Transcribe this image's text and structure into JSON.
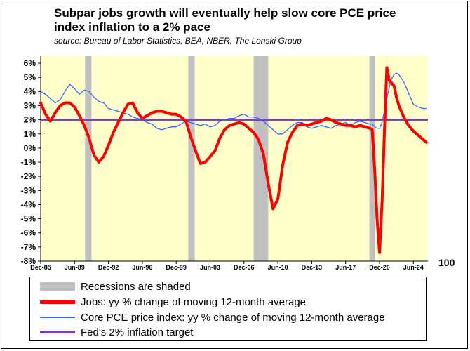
{
  "title": "Subpar jobs growth will eventually help slow core PCE price index inflation to a 2% pace",
  "subtitle": "source: Bureau of Labor Statistics, BEA, NBER, The Lonski Group",
  "extra_label": "100",
  "colors": {
    "plot_bg": "#FFFFCC",
    "recession": "#C0C0C0",
    "jobs": "#FF0000",
    "pce": "#3366FF",
    "target": "#7F3FBF"
  },
  "legend": [
    {
      "label": "Recessions are shaded",
      "kind": "recession"
    },
    {
      "label": "Jobs: yy % change of moving 12-month average",
      "kind": "jobs"
    },
    {
      "label": "Core PCE price index: yy % change of moving 12-month average",
      "kind": "pce"
    },
    {
      "label": "Fed's 2% inflation target",
      "kind": "target"
    }
  ],
  "chart_data": {
    "type": "line",
    "title": "Subpar jobs growth will eventually help slow core PCE price index inflation to a 2% pace",
    "subtitle": "source: Bureau of Labor Statistics, BEA, NBER, The Lonski Group",
    "x_range": [
      "1985-12",
      "2025-12"
    ],
    "x_tick_labels": [
      "Dec-85",
      "Jun-89",
      "Dec-92",
      "Jun-96",
      "Dec-99",
      "Jun-03",
      "Dec-06",
      "Jun-10",
      "Dec-13",
      "Jun-17",
      "Dec-20",
      "Jun-24"
    ],
    "x_tick_dates": [
      "1985-12",
      "1989-06",
      "1992-12",
      "1996-06",
      "1999-12",
      "2003-06",
      "2006-12",
      "2010-06",
      "2013-12",
      "2017-06",
      "2020-12",
      "2024-06"
    ],
    "y_range": [
      -8,
      6.5
    ],
    "y_tick_values": [
      6,
      5,
      4,
      3,
      2,
      1,
      0,
      -1,
      -2,
      -3,
      -4,
      -5,
      -6,
      -7,
      -8
    ],
    "y_tick_labels": [
      "6%",
      "5%",
      "4%",
      "3%",
      "2%",
      "1%",
      "0%",
      "-1%",
      "-2%",
      "-3%",
      "-4%",
      "-5%",
      "-6%",
      "-7%",
      "-8%"
    ],
    "grid": false,
    "recessions": [
      [
        "1990-07",
        "1991-03"
      ],
      [
        "2001-03",
        "2001-11"
      ],
      [
        "2007-12",
        "2009-06"
      ],
      [
        "2020-02",
        "2020-04"
      ]
    ],
    "reference_line": {
      "name": "Fed's 2% inflation target",
      "value": 2
    },
    "series": [
      {
        "name": "Jobs: yy % change of moving 12-month average",
        "points": [
          [
            "1985-12",
            3.2
          ],
          [
            "1986-06",
            2.4
          ],
          [
            "1986-12",
            1.9
          ],
          [
            "1987-06",
            2.5
          ],
          [
            "1987-12",
            3.0
          ],
          [
            "1988-06",
            3.2
          ],
          [
            "1988-12",
            3.2
          ],
          [
            "1989-06",
            2.9
          ],
          [
            "1989-12",
            2.3
          ],
          [
            "1990-06",
            1.6
          ],
          [
            "1990-12",
            0.7
          ],
          [
            "1991-06",
            -0.5
          ],
          [
            "1991-12",
            -1.0
          ],
          [
            "1992-06",
            -0.6
          ],
          [
            "1992-12",
            0.2
          ],
          [
            "1993-06",
            1.1
          ],
          [
            "1993-12",
            1.8
          ],
          [
            "1994-06",
            2.5
          ],
          [
            "1994-12",
            3.1
          ],
          [
            "1995-06",
            3.2
          ],
          [
            "1995-12",
            2.5
          ],
          [
            "1996-06",
            2.1
          ],
          [
            "1996-12",
            2.3
          ],
          [
            "1997-06",
            2.5
          ],
          [
            "1997-12",
            2.6
          ],
          [
            "1998-06",
            2.6
          ],
          [
            "1998-12",
            2.5
          ],
          [
            "1999-06",
            2.4
          ],
          [
            "1999-12",
            2.4
          ],
          [
            "2000-06",
            2.2
          ],
          [
            "2000-12",
            1.9
          ],
          [
            "2001-06",
            0.8
          ],
          [
            "2001-12",
            -0.2
          ],
          [
            "2002-06",
            -1.1
          ],
          [
            "2002-12",
            -1.0
          ],
          [
            "2003-06",
            -0.6
          ],
          [
            "2003-12",
            -0.2
          ],
          [
            "2004-06",
            0.7
          ],
          [
            "2004-12",
            1.3
          ],
          [
            "2005-06",
            1.6
          ],
          [
            "2005-12",
            1.7
          ],
          [
            "2006-06",
            1.8
          ],
          [
            "2006-12",
            1.7
          ],
          [
            "2007-06",
            1.4
          ],
          [
            "2007-12",
            1.1
          ],
          [
            "2008-06",
            0.6
          ],
          [
            "2008-12",
            -0.4
          ],
          [
            "2009-06",
            -2.5
          ],
          [
            "2009-12",
            -4.3
          ],
          [
            "2010-06",
            -3.6
          ],
          [
            "2010-12",
            -1.2
          ],
          [
            "2011-06",
            0.4
          ],
          [
            "2011-12",
            1.1
          ],
          [
            "2012-06",
            1.6
          ],
          [
            "2012-12",
            1.7
          ],
          [
            "2013-06",
            1.6
          ],
          [
            "2013-12",
            1.7
          ],
          [
            "2014-06",
            1.8
          ],
          [
            "2014-12",
            1.9
          ],
          [
            "2015-06",
            2.1
          ],
          [
            "2015-12",
            2.0
          ],
          [
            "2016-06",
            1.8
          ],
          [
            "2016-12",
            1.7
          ],
          [
            "2017-06",
            1.6
          ],
          [
            "2017-12",
            1.6
          ],
          [
            "2018-06",
            1.5
          ],
          [
            "2018-12",
            1.6
          ],
          [
            "2019-06",
            1.5
          ],
          [
            "2019-12",
            1.4
          ],
          [
            "2020-03",
            1.3
          ],
          [
            "2020-06",
            -1.5
          ],
          [
            "2020-09",
            -5.0
          ],
          [
            "2020-12",
            -7.4
          ],
          [
            "2021-03",
            -4.0
          ],
          [
            "2021-06",
            1.0
          ],
          [
            "2021-09",
            5.7
          ],
          [
            "2021-12",
            4.8
          ],
          [
            "2022-03",
            4.6
          ],
          [
            "2022-06",
            4.4
          ],
          [
            "2022-09",
            3.6
          ],
          [
            "2022-12",
            3.0
          ],
          [
            "2023-06",
            2.2
          ],
          [
            "2023-12",
            1.6
          ],
          [
            "2024-06",
            1.2
          ],
          [
            "2024-12",
            0.9
          ],
          [
            "2025-06",
            0.6
          ],
          [
            "2025-10",
            0.4
          ]
        ]
      },
      {
        "name": "Core PCE price index: yy % change of moving 12-month average",
        "points": [
          [
            "1985-12",
            4.0
          ],
          [
            "1986-06",
            3.8
          ],
          [
            "1986-12",
            3.5
          ],
          [
            "1987-06",
            3.2
          ],
          [
            "1987-12",
            3.4
          ],
          [
            "1988-06",
            4.0
          ],
          [
            "1988-12",
            4.5
          ],
          [
            "1989-06",
            4.2
          ],
          [
            "1989-12",
            3.8
          ],
          [
            "1990-06",
            4.1
          ],
          [
            "1990-12",
            4.0
          ],
          [
            "1991-06",
            3.6
          ],
          [
            "1991-12",
            3.3
          ],
          [
            "1992-06",
            3.2
          ],
          [
            "1992-12",
            2.8
          ],
          [
            "1993-06",
            2.7
          ],
          [
            "1993-12",
            2.6
          ],
          [
            "1994-06",
            2.5
          ],
          [
            "1994-12",
            2.4
          ],
          [
            "1995-06",
            2.2
          ],
          [
            "1995-12",
            2.1
          ],
          [
            "1996-06",
            2.0
          ],
          [
            "1996-12",
            1.8
          ],
          [
            "1997-06",
            1.7
          ],
          [
            "1997-12",
            1.4
          ],
          [
            "1998-06",
            1.3
          ],
          [
            "1998-12",
            1.4
          ],
          [
            "1999-06",
            1.5
          ],
          [
            "1999-12",
            1.5
          ],
          [
            "2000-06",
            1.7
          ],
          [
            "2000-12",
            1.9
          ],
          [
            "2001-06",
            1.8
          ],
          [
            "2001-12",
            1.7
          ],
          [
            "2002-06",
            1.6
          ],
          [
            "2002-12",
            1.7
          ],
          [
            "2003-06",
            1.5
          ],
          [
            "2003-12",
            1.6
          ],
          [
            "2004-06",
            1.9
          ],
          [
            "2004-12",
            2.0
          ],
          [
            "2005-06",
            2.1
          ],
          [
            "2005-12",
            2.1
          ],
          [
            "2006-06",
            2.3
          ],
          [
            "2006-12",
            2.4
          ],
          [
            "2007-06",
            2.2
          ],
          [
            "2007-12",
            2.2
          ],
          [
            "2008-06",
            2.1
          ],
          [
            "2008-12",
            1.9
          ],
          [
            "2009-06",
            1.6
          ],
          [
            "2009-12",
            1.3
          ],
          [
            "2010-06",
            1.0
          ],
          [
            "2010-12",
            1.0
          ],
          [
            "2011-06",
            1.3
          ],
          [
            "2011-12",
            1.6
          ],
          [
            "2012-06",
            1.8
          ],
          [
            "2012-12",
            1.8
          ],
          [
            "2013-06",
            1.5
          ],
          [
            "2013-12",
            1.4
          ],
          [
            "2014-06",
            1.5
          ],
          [
            "2014-12",
            1.6
          ],
          [
            "2015-06",
            1.5
          ],
          [
            "2015-12",
            1.4
          ],
          [
            "2016-06",
            1.6
          ],
          [
            "2016-12",
            1.7
          ],
          [
            "2017-06",
            1.8
          ],
          [
            "2017-12",
            1.6
          ],
          [
            "2018-06",
            1.8
          ],
          [
            "2018-12",
            1.9
          ],
          [
            "2019-06",
            1.8
          ],
          [
            "2019-12",
            1.7
          ],
          [
            "2020-03",
            1.7
          ],
          [
            "2020-06",
            1.5
          ],
          [
            "2020-09",
            1.4
          ],
          [
            "2020-12",
            1.4
          ],
          [
            "2021-03",
            1.8
          ],
          [
            "2021-06",
            2.6
          ],
          [
            "2021-09",
            3.5
          ],
          [
            "2021-12",
            4.3
          ],
          [
            "2022-03",
            4.9
          ],
          [
            "2022-06",
            5.2
          ],
          [
            "2022-09",
            5.3
          ],
          [
            "2022-12",
            5.2
          ],
          [
            "2023-06",
            4.7
          ],
          [
            "2023-12",
            3.9
          ],
          [
            "2024-06",
            3.1
          ],
          [
            "2024-12",
            2.9
          ],
          [
            "2025-06",
            2.8
          ],
          [
            "2025-10",
            2.8
          ]
        ]
      }
    ]
  }
}
